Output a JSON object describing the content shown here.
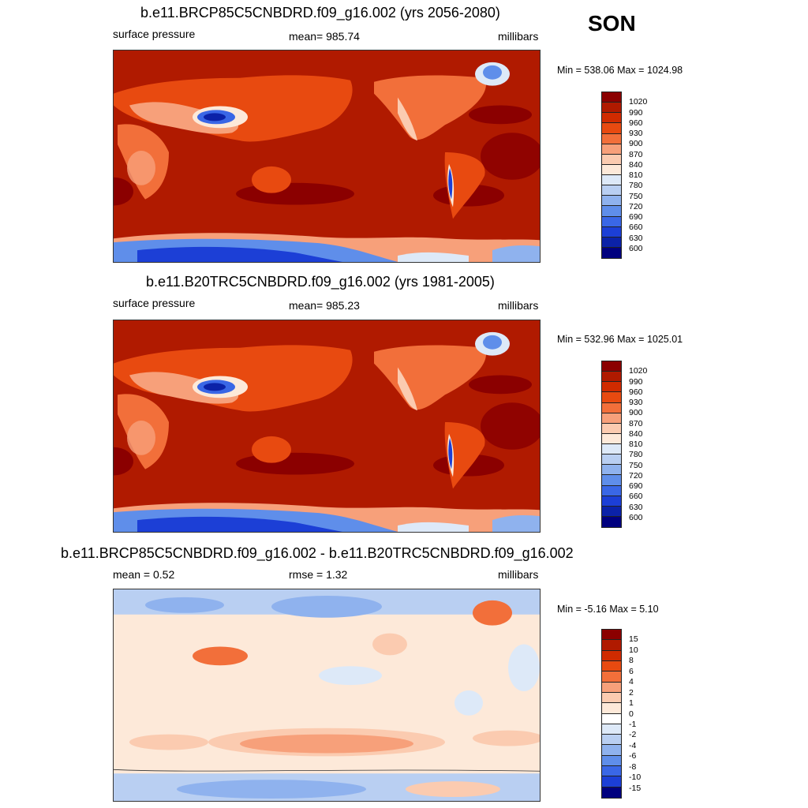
{
  "season": "SON",
  "panels": [
    {
      "title": "b.e11.BRCP85C5CNBDRD.f09_g16.002 (yrs 2056-2080)",
      "left_label": "surface pressure",
      "center_label": "mean= 985.74",
      "right_label": "millibars",
      "minmax": "Min = 538.06 Max = 1024.98",
      "levels": [
        "1020",
        "990",
        "960",
        "930",
        "900",
        "870",
        "840",
        "810",
        "780",
        "750",
        "720",
        "690",
        "660",
        "630",
        "600"
      ]
    },
    {
      "title": "b.e11.B20TRC5CNBDRD.f09_g16.002 (yrs 1981-2005)",
      "left_label": "surface pressure",
      "center_label": "mean= 985.23",
      "right_label": "millibars",
      "minmax": "Min = 532.96 Max = 1025.01",
      "levels": [
        "1020",
        "990",
        "960",
        "930",
        "900",
        "870",
        "840",
        "810",
        "780",
        "750",
        "720",
        "690",
        "660",
        "630",
        "600"
      ]
    },
    {
      "title": "b.e11.BRCP85C5CNBDRD.f09_g16.002 - b.e11.B20TRC5CNBDRD.f09_g16.002",
      "left_label": "mean =   0.52",
      "center_label": "rmse =   1.32",
      "right_label": "millibars",
      "minmax": "Min =  -5.16 Max =   5.10",
      "levels": [
        "15",
        "10",
        "8",
        "6",
        "4",
        "2",
        "1",
        "0",
        "-1",
        "-2",
        "-4",
        "-6",
        "-8",
        "-10",
        "-15"
      ]
    }
  ],
  "colors": {
    "abs_scale": [
      "#8b0000",
      "#b01a00",
      "#d02b00",
      "#e84a10",
      "#f26f3a",
      "#f7a07a",
      "#fbcbb0",
      "#fde9d9",
      "#dde9f8",
      "#b9cff2",
      "#8fb2ee",
      "#5f8eea",
      "#3a67e6",
      "#1c3fd6",
      "#0b22a8",
      "#00007f"
    ],
    "diff_scale": [
      "#8b0000",
      "#b01a00",
      "#d02b00",
      "#e84a10",
      "#f26f3a",
      "#f7a07a",
      "#fbcbb0",
      "#fde9d9",
      "#ffffff",
      "#dde9f8",
      "#b9cff2",
      "#8fb2ee",
      "#5f8eea",
      "#3a67e6",
      "#1c3fd6",
      "#00007f"
    ]
  }
}
